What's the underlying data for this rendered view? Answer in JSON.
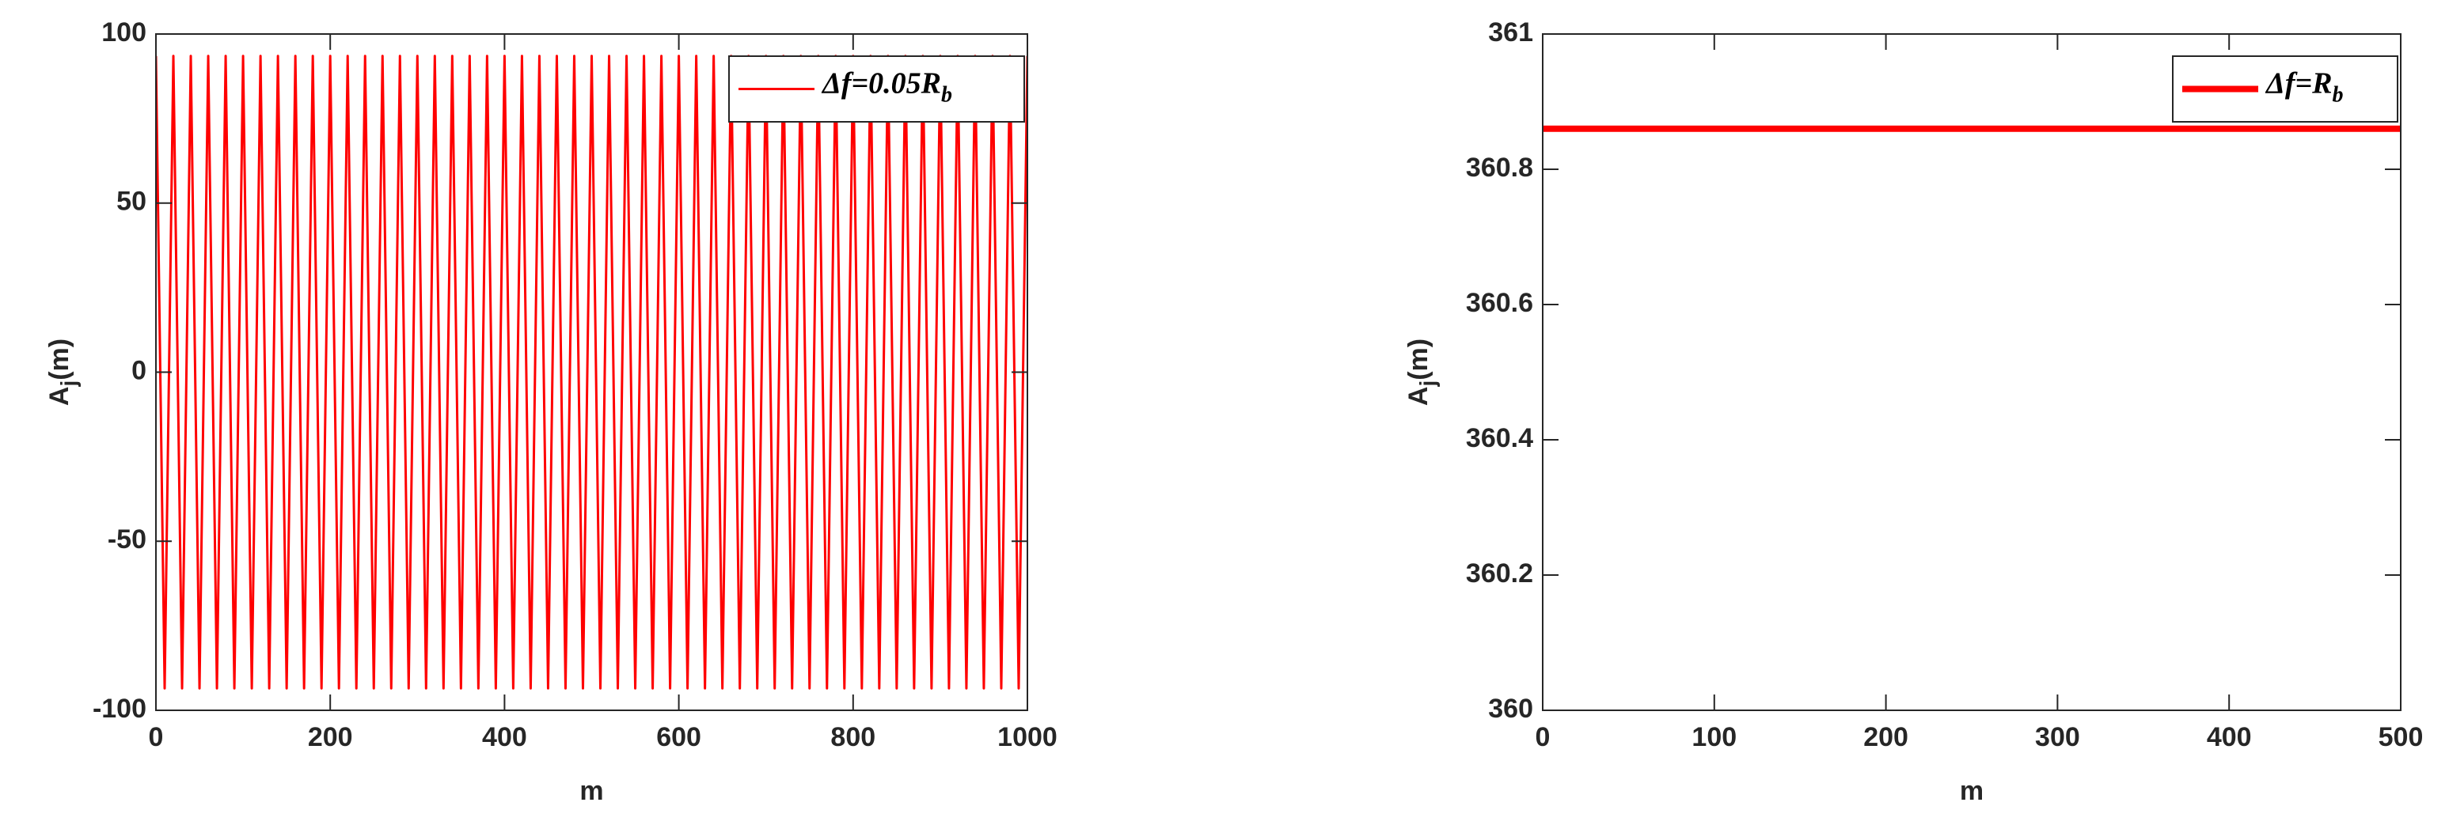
{
  "chart_data": [
    {
      "type": "line",
      "xlabel": "m",
      "ylabel": [
        "A",
        "j",
        "(m)"
      ],
      "xlim": [
        0,
        1000
      ],
      "xticks": [
        0,
        200,
        400,
        600,
        800,
        1000
      ],
      "ylim": [
        -100,
        100
      ],
      "yticks": [
        -100,
        -50,
        0,
        50,
        100
      ],
      "legend": "upper right",
      "line_width": 3,
      "x": [
        0,
        10,
        20,
        30,
        40,
        50,
        60,
        70,
        80,
        90,
        100,
        110,
        120,
        130,
        140,
        150,
        160,
        170,
        180,
        190,
        200,
        210,
        220,
        230,
        240,
        250,
        260,
        270,
        280,
        290,
        300,
        310,
        320,
        330,
        340,
        350,
        360,
        370,
        380,
        390,
        400,
        410,
        420,
        430,
        440,
        450,
        460,
        470,
        480,
        490,
        500,
        510,
        520,
        530,
        540,
        550,
        560,
        570,
        580,
        590,
        600,
        610,
        620,
        630,
        640,
        650,
        660,
        670,
        680,
        690,
        700,
        710,
        720,
        730,
        740,
        750,
        760,
        770,
        780,
        790,
        800,
        810,
        820,
        830,
        840,
        850,
        860,
        870,
        880,
        890,
        900,
        910,
        920,
        930,
        940,
        950,
        960,
        970,
        980,
        990,
        1000
      ],
      "series": [
        {
          "name": "Δf=0.05R",
          "name_subscript": "b",
          "color": "#ff0000",
          "values": [
            93.5,
            -93.5,
            93.5,
            -93.5,
            93.5,
            -93.5,
            93.5,
            -93.5,
            93.5,
            -93.5,
            93.5,
            -93.5,
            93.5,
            -93.5,
            93.5,
            -93.5,
            93.5,
            -93.5,
            93.5,
            -93.5,
            93.5,
            -93.5,
            93.5,
            -93.5,
            93.5,
            -93.5,
            93.5,
            -93.5,
            93.5,
            -93.5,
            93.5,
            -93.5,
            93.5,
            -93.5,
            93.5,
            -93.5,
            93.5,
            -93.5,
            93.5,
            -93.5,
            93.5,
            -93.5,
            93.5,
            -93.5,
            93.5,
            -93.5,
            93.5,
            -93.5,
            93.5,
            -93.5,
            93.5,
            -93.5,
            93.5,
            -93.5,
            93.5,
            -93.5,
            93.5,
            -93.5,
            93.5,
            -93.5,
            93.5,
            -93.5,
            93.5,
            -93.5,
            93.5,
            -93.5,
            93.5,
            -93.5,
            93.5,
            -93.5,
            93.5,
            -93.5,
            93.5,
            -93.5,
            93.5,
            -93.5,
            93.5,
            -93.5,
            93.5,
            -93.5,
            93.5,
            -93.5,
            93.5,
            -93.5,
            93.5,
            -93.5,
            93.5,
            -93.5,
            93.5,
            -93.5,
            93.5,
            -93.5,
            93.5,
            -93.5,
            93.5,
            -93.5,
            93.5,
            -93.5,
            93.5,
            -93.5,
            93.5
          ]
        }
      ]
    },
    {
      "type": "line",
      "xlabel": "m",
      "ylabel": [
        "A",
        "j",
        "(m)"
      ],
      "xlim": [
        0,
        500
      ],
      "xticks": [
        0,
        100,
        200,
        300,
        400,
        500
      ],
      "ylim": [
        360,
        361
      ],
      "yticks": [
        360,
        360.2,
        360.4,
        360.6,
        360.8,
        361
      ],
      "legend": "upper right",
      "line_width": 8,
      "x": [
        0,
        500
      ],
      "series": [
        {
          "name": "Δf=R",
          "name_subscript": "b",
          "color": "#ff0000",
          "values": [
            360.86,
            360.86
          ]
        }
      ]
    }
  ]
}
